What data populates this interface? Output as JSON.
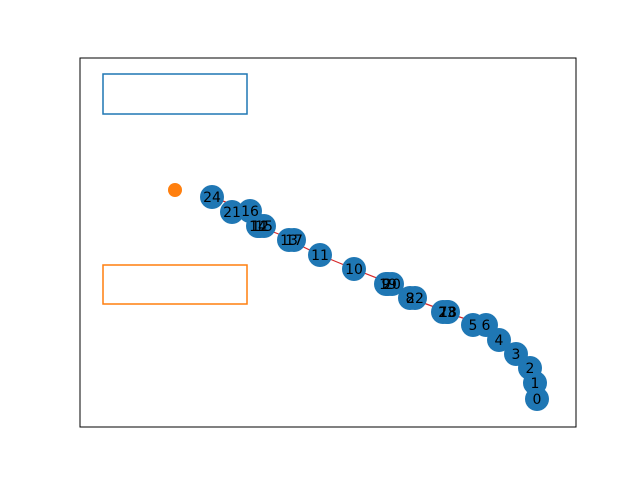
{
  "nodes": [
    {
      "label": "0"
    },
    {
      "label": "1"
    },
    {
      "label": "2"
    },
    {
      "label": "3"
    },
    {
      "label": "4"
    },
    {
      "label": "5"
    },
    {
      "label": "6"
    },
    {
      "label": "7"
    },
    {
      "label": "8"
    },
    {
      "label": "9"
    },
    {
      "label": "10"
    },
    {
      "label": "11"
    },
    {
      "label": "12"
    },
    {
      "label": "13"
    },
    {
      "label": "14"
    },
    {
      "label": "15"
    },
    {
      "label": "16"
    },
    {
      "label": "17"
    },
    {
      "label": "18"
    },
    {
      "label": "19"
    },
    {
      "label": "20"
    },
    {
      "label": "21"
    },
    {
      "label": "22"
    },
    {
      "label": "23"
    },
    {
      "label": "24"
    }
  ]
}
